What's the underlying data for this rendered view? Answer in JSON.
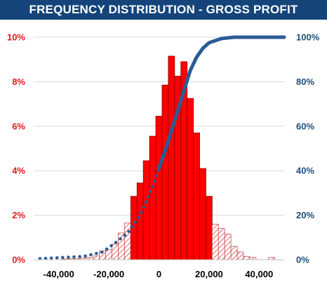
{
  "chart_data": {
    "type": "histogram-with-cumulative-line",
    "title": "FREQUENCY DISTRIBUTION - GROSS PROFIT",
    "bin_width": 2500,
    "bins": [
      {
        "x": -37500,
        "value": 0.03,
        "highlight": false
      },
      {
        "x": -35000,
        "value": 0.05,
        "highlight": false
      },
      {
        "x": -32500,
        "value": 0.05,
        "highlight": false
      },
      {
        "x": -30000,
        "value": 0.08,
        "highlight": false
      },
      {
        "x": -27500,
        "value": 0.1,
        "highlight": false
      },
      {
        "x": -25000,
        "value": 0.17,
        "highlight": false
      },
      {
        "x": -22500,
        "value": 0.4,
        "highlight": false
      },
      {
        "x": -20000,
        "value": 0.45,
        "highlight": false
      },
      {
        "x": -17500,
        "value": 0.7,
        "highlight": false
      },
      {
        "x": -15000,
        "value": 1.2,
        "highlight": false
      },
      {
        "x": -12500,
        "value": 1.65,
        "highlight": false
      },
      {
        "x": -10000,
        "value": 2.85,
        "highlight": true
      },
      {
        "x": -7500,
        "value": 3.45,
        "highlight": true
      },
      {
        "x": -5000,
        "value": 4.45,
        "highlight": true
      },
      {
        "x": -2500,
        "value": 5.55,
        "highlight": true
      },
      {
        "x": 0,
        "value": 6.45,
        "highlight": true
      },
      {
        "x": 2500,
        "value": 7.85,
        "highlight": true
      },
      {
        "x": 5000,
        "value": 9.15,
        "highlight": true
      },
      {
        "x": 7500,
        "value": 8.25,
        "highlight": true
      },
      {
        "x": 10000,
        "value": 8.9,
        "highlight": true
      },
      {
        "x": 12500,
        "value": 7.25,
        "highlight": true
      },
      {
        "x": 15000,
        "value": 5.7,
        "highlight": true
      },
      {
        "x": 17500,
        "value": 4.1,
        "highlight": true
      },
      {
        "x": 20000,
        "value": 2.85,
        "highlight": true
      },
      {
        "x": 22500,
        "value": 1.6,
        "highlight": false
      },
      {
        "x": 25000,
        "value": 1.4,
        "highlight": false
      },
      {
        "x": 27500,
        "value": 1.15,
        "highlight": false
      },
      {
        "x": 30000,
        "value": 0.6,
        "highlight": false
      },
      {
        "x": 32500,
        "value": 0.35,
        "highlight": false
      },
      {
        "x": 35000,
        "value": 0.15,
        "highlight": false
      },
      {
        "x": 37500,
        "value": 0.1,
        "highlight": false
      },
      {
        "x": 45000,
        "value": 0.1,
        "highlight": false
      }
    ],
    "cumulative": {
      "dotted": [
        [
          -47500,
          0.5
        ],
        [
          -40000,
          0.9
        ],
        [
          -30000,
          1.5
        ],
        [
          -22500,
          3.5
        ],
        [
          -17500,
          7.5
        ],
        [
          -12500,
          12.0
        ],
        [
          -7500,
          20.0
        ],
        [
          -2500,
          33.0
        ],
        [
          0,
          41.0
        ]
      ],
      "solid": [
        [
          0,
          41.0
        ],
        [
          2500,
          49.0
        ],
        [
          5000,
          58.0
        ],
        [
          7500,
          67.0
        ],
        [
          10000,
          76.0
        ],
        [
          12500,
          85.0
        ],
        [
          15000,
          91.0
        ],
        [
          17500,
          95.0
        ],
        [
          20000,
          97.5
        ],
        [
          25000,
          99.4
        ],
        [
          30000,
          100.0
        ],
        [
          37500,
          100.0
        ],
        [
          50000,
          100.0
        ]
      ]
    },
    "x_axis": {
      "min": -50000,
      "max": 50000,
      "ticks": [
        -40000,
        -20000,
        0,
        20000,
        40000
      ],
      "tick_labels": [
        "-40,000",
        "-20,000",
        "0",
        "20,000",
        "40,000"
      ]
    },
    "y_left": {
      "min": 0,
      "max": 10,
      "ticks": [
        0,
        2,
        4,
        6,
        8,
        10
      ],
      "tick_labels": [
        "0%",
        "2%",
        "4%",
        "6%",
        "8%",
        "10%"
      ]
    },
    "y_right": {
      "min": 0,
      "max": 100,
      "ticks": [
        0,
        20,
        40,
        60,
        80,
        100
      ],
      "tick_labels": [
        "0%",
        "20%",
        "40%",
        "60%",
        "80%",
        "100%"
      ]
    },
    "grid": true,
    "colors": {
      "bar_fill": "#ff0000",
      "bar_edge": "#8b0000",
      "hatch": "#e36a6a",
      "line": "#2a5c96",
      "title_bg": "#14447a",
      "grid": "#d9d9d9"
    }
  }
}
